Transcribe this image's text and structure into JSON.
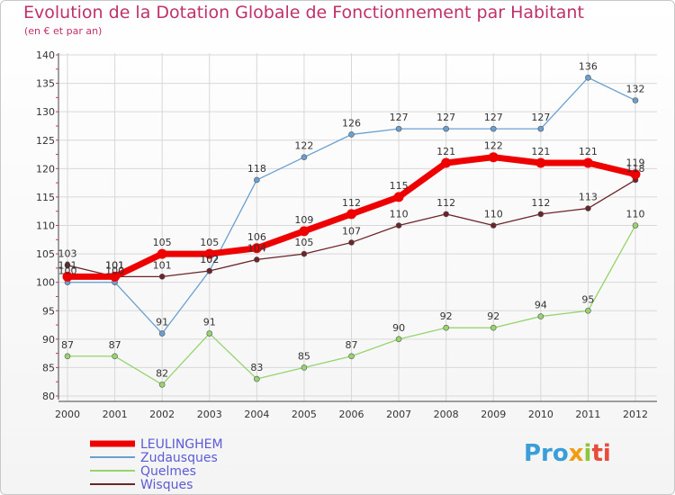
{
  "title": "Evolution de la Dotation Globale de Fonctionnement par Habitant",
  "subtitle": "(en € et par an)",
  "logo": {
    "part1": "Pro",
    "part2": "x",
    "part3": "i",
    "part4": "ti"
  },
  "colors": {
    "LEULINGHEM": "#ee0000",
    "Zudausques": "#6a9fd0",
    "Quelmes": "#96d46e",
    "Wisques": "#6b2428",
    "grid": "#d8d8d8",
    "axis_tick": "#cc3377",
    "label": "#333333",
    "legend": "#5b5bd6"
  },
  "chart_data": {
    "type": "line",
    "title": "Evolution de la Dotation Globale de Fonctionnement par Habitant",
    "subtitle": "(en € et par an)",
    "xlabel": "",
    "ylabel": "",
    "ylim": [
      80,
      140
    ],
    "yticks": [
      80,
      85,
      90,
      95,
      100,
      105,
      110,
      115,
      120,
      125,
      130,
      135,
      140
    ],
    "categories": [
      "2000",
      "2001",
      "2002",
      "2003",
      "2004",
      "2005",
      "2006",
      "2007",
      "2008",
      "2009",
      "2010",
      "2011",
      "2012"
    ],
    "series": [
      {
        "name": "LEULINGHEM",
        "values": [
          101,
          101,
          105,
          105,
          106,
          109,
          112,
          115,
          121,
          122,
          121,
          121,
          119
        ]
      },
      {
        "name": "Zudausques",
        "values": [
          100,
          100,
          91,
          102,
          118,
          122,
          126,
          127,
          127,
          127,
          127,
          136,
          132
        ]
      },
      {
        "name": "Quelmes",
        "values": [
          87,
          87,
          82,
          91,
          83,
          85,
          87,
          90,
          92,
          92,
          94,
          95,
          110
        ]
      },
      {
        "name": "Wisques",
        "values": [
          103,
          101,
          101,
          102,
          104,
          105,
          107,
          110,
          112,
          110,
          112,
          113,
          118
        ]
      }
    ],
    "legend_position": "bottom-left",
    "grid": true
  }
}
